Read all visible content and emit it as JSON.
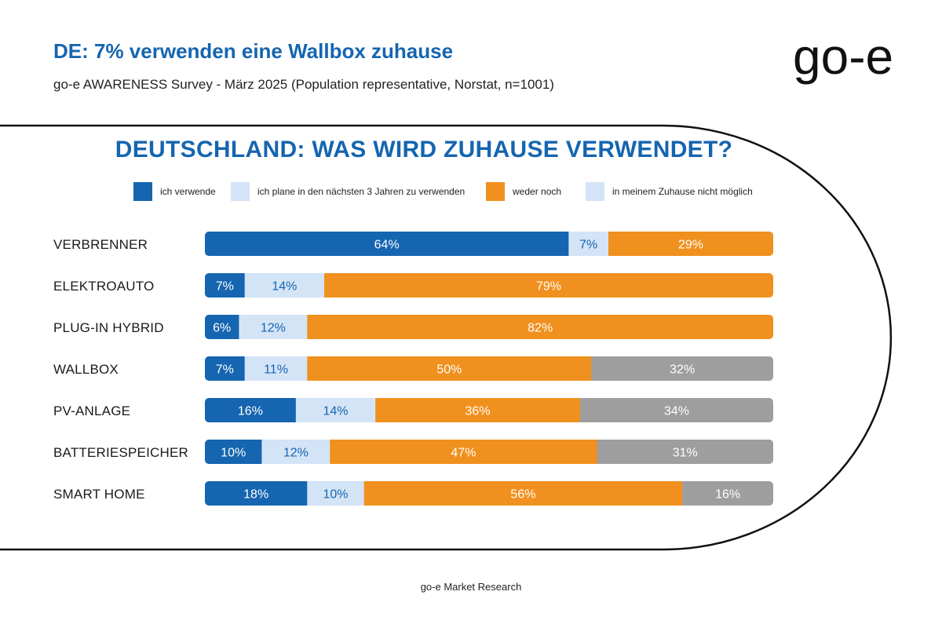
{
  "header": {
    "title": "DE: 7% verwenden eine Wallbox zuhause",
    "subtitle": "go-e AWARENESS Survey - März 2025 (Population representative, Norstat, n=1001)",
    "logo_text": "go-e"
  },
  "footer": {
    "text": "go-e Market Research"
  },
  "colors": {
    "ich_verwende": "#1565b0",
    "plane": "#d4e4f7",
    "weder_noch": "#f0901e",
    "nicht_moeglich": "#9e9e9e",
    "title_blue": "#1565b0"
  },
  "chart_data": {
    "type": "bar",
    "orientation": "horizontal",
    "stacked": true,
    "normalized_percent": true,
    "title": "DEUTSCHLAND: WAS WIRD ZUHAUSE VERWENDET?",
    "categories": [
      "VERBRENNER",
      "ELEKTROAUTO",
      "PLUG-IN HYBRID",
      "WALLBOX",
      "PV-ANLAGE",
      "BATTERIESPEICHER",
      "SMART HOME"
    ],
    "series": [
      {
        "name": "ich verwende",
        "values": [
          64,
          7,
          6,
          7,
          16,
          10,
          18
        ]
      },
      {
        "name": "ich plane in den nächsten 3 Jahren zu verwenden",
        "values": [
          7,
          14,
          12,
          11,
          14,
          12,
          10
        ]
      },
      {
        "name": "weder noch",
        "values": [
          29,
          79,
          82,
          50,
          36,
          47,
          56
        ]
      },
      {
        "name": "in meinem Zuhause nicht möglich",
        "values": [
          null,
          null,
          null,
          32,
          34,
          31,
          16
        ]
      }
    ],
    "value_suffix": "%",
    "legend_position": "top",
    "grid": false
  }
}
